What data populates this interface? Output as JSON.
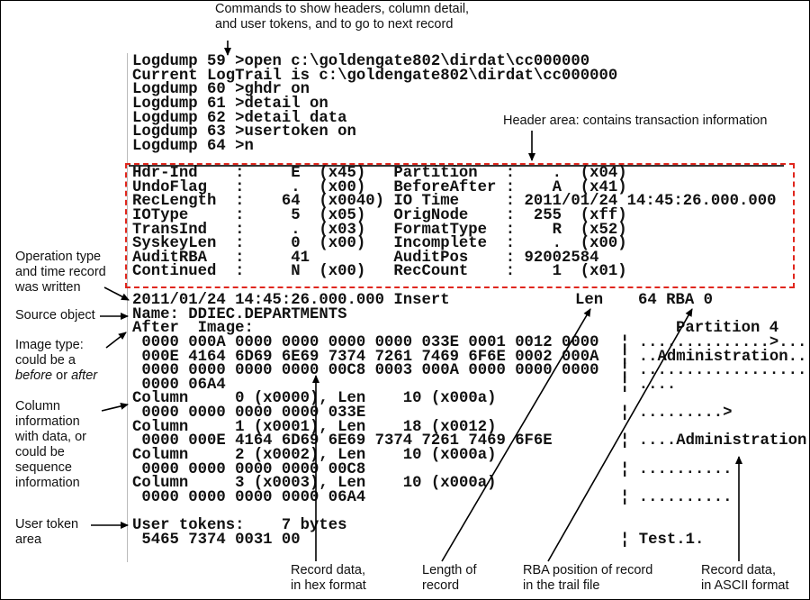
{
  "annotations": {
    "commands": [
      "Commands to show headers, column detail,",
      "and user tokens, and to go to next record"
    ],
    "header_area": "Header area: contains transaction information",
    "operation": [
      "Operation type",
      "and time record",
      "was written"
    ],
    "source_object": "Source object",
    "image_type": [
      "Image type:",
      "could be a",
      "before",
      "or",
      "after"
    ],
    "column_info": [
      "Column",
      "information",
      "with data, or",
      "could be",
      "sequence",
      "information"
    ],
    "user_token": [
      "User token",
      "area"
    ],
    "hex_data": [
      "Record data,",
      "in hex format"
    ],
    "length": [
      "Length of",
      "record"
    ],
    "rba": [
      "RBA position of record",
      "in the trail file"
    ],
    "ascii_data": [
      "Record data,",
      "in ASCII format"
    ]
  },
  "commands": [
    "Logdump 59 >open c:\\goldengate802\\dirdat\\cc000000",
    "Current LogTrail is c:\\goldengate802\\dirdat\\cc000000",
    "Logdump 60 >ghdr on",
    "Logdump 61 >detail on",
    "Logdump 62 >detail data",
    "Logdump 63 >usertoken on",
    "Logdump 64 >n"
  ],
  "header": [
    {
      "l1": "Hdr-Ind",
      "v1": "E",
      "h1": "(x45)",
      "l2": "Partition",
      "v2": ".",
      "h2": "(x04)"
    },
    {
      "l1": "UndoFlag",
      "v1": ".",
      "h1": "(x00)",
      "l2": "BeforeAfter",
      "v2": "A",
      "h2": "(x41)"
    },
    {
      "l1": "RecLength",
      "v1": "64",
      "h1": "(x0040)",
      "l2": "IO Time",
      "v2": "2011/01/24 14:45:26.000.000",
      "h2": ""
    },
    {
      "l1": "IOType",
      "v1": "5",
      "h1": "(x05)",
      "l2": "OrigNode",
      "v2": "255",
      "h2": "(xff)"
    },
    {
      "l1": "TransInd",
      "v1": ".",
      "h1": "(x03)",
      "l2": "FormatType",
      "v2": "R",
      "h2": "(x52)"
    },
    {
      "l1": "SyskeyLen",
      "v1": "0",
      "h1": "(x00)",
      "l2": "Incomplete",
      "v2": ".",
      "h2": "(x00)"
    },
    {
      "l1": "AuditRBA",
      "v1": "41",
      "h1": "",
      "l2": "AuditPos",
      "v2": "92002584",
      "h2": ""
    },
    {
      "l1": "Continued",
      "v1": "N",
      "h1": "(x00)",
      "l2": "RecCount",
      "v2": "1",
      "h2": "(x01)"
    }
  ],
  "record": {
    "timestamp_op": "2011/01/24 14:45:26.000.000 Insert",
    "len_label": "Len",
    "len_rba": "64 RBA 0",
    "name": "Name: DDIEC.DEPARTMENTS",
    "image": "After  Image:",
    "partition": "Partition 4",
    "lines": [
      {
        "hex": " 0000 000A 0000 0000 0000 0000 033E 0001 0012 0000",
        "ascii": "¦ ..............>...."
      },
      {
        "hex": " 000E 4164 6D69 6E69 7374 7261 7469 6F6E 0002 000A",
        "ascii": "¦ ..Administration.."
      },
      {
        "hex": " 0000 0000 0000 0000 00C8 0003 000A 0000 0000 0000",
        "ascii": "¦ ...................."
      },
      {
        "hex": " 0000 06A4",
        "ascii": "¦ ...."
      },
      {
        "hex": "Column     0 (x0000), Len    10 (x000a)",
        "ascii": ""
      },
      {
        "hex": " 0000 0000 0000 0000 033E",
        "ascii": "¦ .........>"
      },
      {
        "hex": "Column     1 (x0001), Len    18 (x0012)",
        "ascii": ""
      },
      {
        "hex": " 0000 000E 4164 6D69 6E69 7374 7261 7469 6F6E",
        "ascii": "¦ ....Administration"
      },
      {
        "hex": "Column     2 (x0002), Len    10 (x000a)",
        "ascii": ""
      },
      {
        "hex": " 0000 0000 0000 0000 00C8",
        "ascii": "¦ .........."
      },
      {
        "hex": "Column     3 (x0003), Len    10 (x000a)",
        "ascii": ""
      },
      {
        "hex": " 0000 0000 0000 0000 06A4",
        "ascii": "¦ .........."
      },
      {
        "hex": "",
        "ascii": ""
      },
      {
        "hex": "User tokens:    7 bytes",
        "ascii": ""
      },
      {
        "hex": " 5465 7374 0031 00",
        "ascii": "¦ Test.1."
      }
    ]
  },
  "colors": {
    "header_box": "#e0261d",
    "text": "#111111"
  }
}
